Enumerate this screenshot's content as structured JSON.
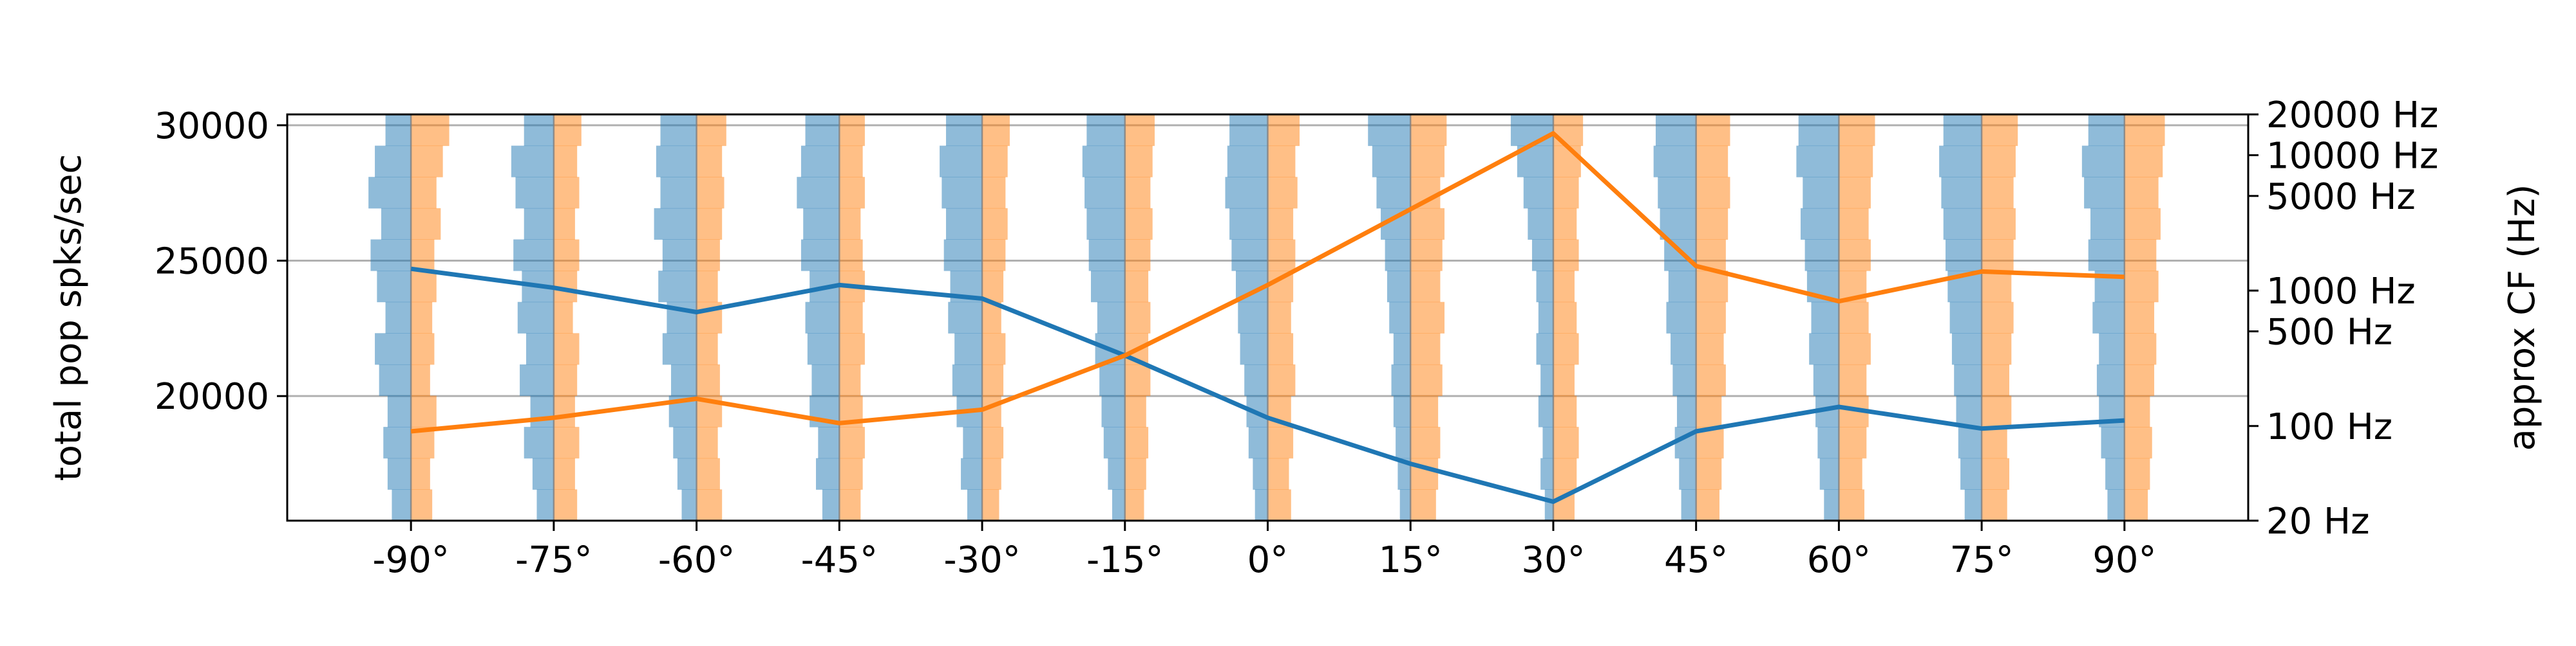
{
  "chart_data": {
    "type": "line",
    "x_ticks": [
      "-90°",
      "-75°",
      "-60°",
      "-45°",
      "-30°",
      "-15°",
      "0°",
      "15°",
      "30°",
      "45°",
      "60°",
      "75°",
      "90°"
    ],
    "x_values": [
      -90,
      -75,
      -60,
      -45,
      -30,
      -15,
      0,
      15,
      30,
      45,
      60,
      75,
      90
    ],
    "xlim": [
      -103,
      103
    ],
    "ylabel_left": "total pop spks/sec",
    "ylabel_right": "approx CF (Hz)",
    "left_axis": {
      "ylim": [
        15400,
        30400
      ],
      "ticks": [
        20000,
        25000,
        30000
      ],
      "tick_labels": [
        "20000",
        "25000",
        "30000"
      ]
    },
    "right_axis": {
      "scale": "log",
      "ylim": [
        20,
        20000
      ],
      "ticks": [
        20,
        100,
        500,
        1000,
        5000,
        10000,
        20000
      ],
      "tick_labels": [
        "20 Hz",
        "100 Hz",
        "500 Hz",
        "1000 Hz",
        "5000 Hz",
        "10000 Hz",
        "20000 Hz"
      ]
    },
    "grid": "horizontal",
    "series": [
      {
        "color": "#1f77b4",
        "values": [
          24700,
          24000,
          23100,
          24100,
          23600,
          21500,
          19200,
          17500,
          16100,
          18700,
          19600,
          18800,
          19100
        ]
      },
      {
        "color": "#ff7f0e",
        "values": [
          18700,
          19200,
          19900,
          19000,
          19500,
          21500,
          24100,
          26900,
          29700,
          24800,
          23500,
          24600,
          24400
        ]
      }
    ],
    "distribution_colors": {
      "left": "#1f77b4",
      "right": "#ff7f0e"
    },
    "distributions": [
      {
        "x": -90,
        "left": [
          0.45,
          0.55,
          0.65,
          0.55,
          0.75,
          0.85,
          0.6,
          0.8,
          0.95,
          0.7,
          1.0,
          0.85,
          0.6
        ],
        "right": [
          0.5,
          0.45,
          0.55,
          0.6,
          0.45,
          0.55,
          0.5,
          0.6,
          0.55,
          0.7,
          0.6,
          0.75,
          0.9
        ]
      },
      {
        "x": -75,
        "left": [
          0.4,
          0.5,
          0.7,
          0.55,
          0.8,
          0.65,
          0.85,
          0.75,
          0.95,
          0.7,
          0.9,
          1.0,
          0.7
        ],
        "right": [
          0.55,
          0.5,
          0.6,
          0.5,
          0.55,
          0.6,
          0.45,
          0.55,
          0.6,
          0.5,
          0.6,
          0.55,
          0.65
        ]
      },
      {
        "x": -60,
        "left": [
          0.35,
          0.45,
          0.55,
          0.65,
          0.6,
          0.8,
          0.7,
          0.9,
          0.8,
          1.0,
          0.85,
          0.95,
          0.85
        ],
        "right": [
          0.6,
          0.55,
          0.5,
          0.6,
          0.55,
          0.5,
          0.6,
          0.5,
          0.55,
          0.6,
          0.65,
          0.6,
          0.7
        ]
      },
      {
        "x": -45,
        "left": [
          0.4,
          0.55,
          0.5,
          0.7,
          0.65,
          0.75,
          0.8,
          0.7,
          0.9,
          0.85,
          1.0,
          0.9,
          0.8
        ],
        "right": [
          0.5,
          0.55,
          0.6,
          0.55,
          0.5,
          0.6,
          0.55,
          0.6,
          0.55,
          0.5,
          0.6,
          0.55,
          0.6
        ]
      },
      {
        "x": -30,
        "left": [
          0.35,
          0.5,
          0.45,
          0.6,
          0.7,
          0.65,
          0.8,
          0.75,
          0.9,
          0.85,
          0.95,
          1.0,
          0.85
        ],
        "right": [
          0.4,
          0.45,
          0.5,
          0.45,
          0.5,
          0.55,
          0.45,
          0.5,
          0.55,
          0.6,
          0.55,
          0.6,
          0.65
        ]
      },
      {
        "x": -15,
        "left": [
          0.3,
          0.4,
          0.5,
          0.55,
          0.6,
          0.7,
          0.65,
          0.8,
          0.85,
          0.9,
          0.95,
          1.0,
          0.9
        ],
        "right": [
          0.45,
          0.5,
          0.55,
          0.5,
          0.6,
          0.55,
          0.6,
          0.55,
          0.6,
          0.65,
          0.6,
          0.65,
          0.7
        ]
      },
      {
        "x": 0,
        "left": [
          0.3,
          0.35,
          0.45,
          0.5,
          0.55,
          0.65,
          0.7,
          0.75,
          0.85,
          0.9,
          1.0,
          0.95,
          0.9
        ],
        "right": [
          0.55,
          0.5,
          0.6,
          0.55,
          0.65,
          0.6,
          0.55,
          0.6,
          0.65,
          0.6,
          0.7,
          0.65,
          0.75
        ]
      },
      {
        "x": 15,
        "left": [
          0.25,
          0.3,
          0.35,
          0.4,
          0.45,
          0.4,
          0.5,
          0.55,
          0.6,
          0.7,
          0.8,
          0.9,
          1.0
        ],
        "right": [
          0.6,
          0.65,
          0.7,
          0.65,
          0.75,
          0.7,
          0.8,
          0.7,
          0.75,
          0.8,
          0.7,
          0.8,
          0.85
        ]
      },
      {
        "x": 30,
        "left": [
          0.2,
          0.3,
          0.25,
          0.35,
          0.3,
          0.4,
          0.35,
          0.4,
          0.5,
          0.6,
          0.7,
          0.85,
          1.0
        ],
        "right": [
          0.5,
          0.55,
          0.6,
          0.55,
          0.5,
          0.6,
          0.55,
          0.5,
          0.6,
          0.55,
          0.6,
          0.65,
          0.7
        ]
      },
      {
        "x": 45,
        "left": [
          0.35,
          0.4,
          0.5,
          0.45,
          0.55,
          0.6,
          0.7,
          0.65,
          0.75,
          0.85,
          0.9,
          1.0,
          0.95
        ],
        "right": [
          0.55,
          0.6,
          0.65,
          0.6,
          0.7,
          0.65,
          0.7,
          0.75,
          0.7,
          0.75,
          0.8,
          0.75,
          0.8
        ]
      },
      {
        "x": 60,
        "left": [
          0.35,
          0.45,
          0.5,
          0.55,
          0.6,
          0.7,
          0.65,
          0.75,
          0.8,
          0.9,
          0.85,
          1.0,
          0.95
        ],
        "right": [
          0.6,
          0.55,
          0.65,
          0.7,
          0.65,
          0.75,
          0.7,
          0.65,
          0.75,
          0.7,
          0.75,
          0.8,
          0.85
        ]
      },
      {
        "x": 75,
        "left": [
          0.4,
          0.5,
          0.55,
          0.6,
          0.65,
          0.7,
          0.75,
          0.8,
          0.85,
          0.9,
          0.95,
          1.0,
          0.9
        ],
        "right": [
          0.6,
          0.65,
          0.6,
          0.7,
          0.65,
          0.7,
          0.75,
          0.7,
          0.75,
          0.8,
          0.75,
          0.8,
          0.85
        ]
      },
      {
        "x": 90,
        "left": [
          0.4,
          0.45,
          0.55,
          0.6,
          0.65,
          0.6,
          0.75,
          0.7,
          0.85,
          0.8,
          0.95,
          1.0,
          0.85
        ],
        "right": [
          0.55,
          0.6,
          0.65,
          0.6,
          0.7,
          0.75,
          0.7,
          0.8,
          0.75,
          0.85,
          0.8,
          0.9,
          0.95
        ]
      }
    ]
  }
}
